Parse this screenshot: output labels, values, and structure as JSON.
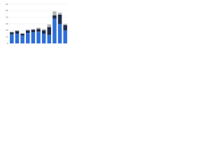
{
  "chart_data": {
    "type": "stacked-bar",
    "categories": [
      null,
      null,
      null,
      null,
      null,
      null,
      null,
      null,
      null,
      null,
      null
    ],
    "series": [
      {
        "color": "#2f6fd6",
        "values": [
          14,
          15,
          12,
          16,
          17,
          18,
          15,
          13,
          38,
          30,
          20
        ]
      },
      {
        "color": "#1f2d4d",
        "values": [
          3,
          4,
          3,
          4,
          4,
          4,
          5,
          12,
          5,
          14,
          8
        ]
      },
      {
        "color": "#b4b4b4",
        "values": [
          1,
          1,
          0,
          1,
          1,
          2,
          2,
          4,
          6,
          3,
          2
        ]
      }
    ],
    "ylim": [
      0,
      60
    ],
    "yticks": [
      0,
      10,
      20,
      30,
      40,
      50,
      60
    ],
    "grid": true
  }
}
